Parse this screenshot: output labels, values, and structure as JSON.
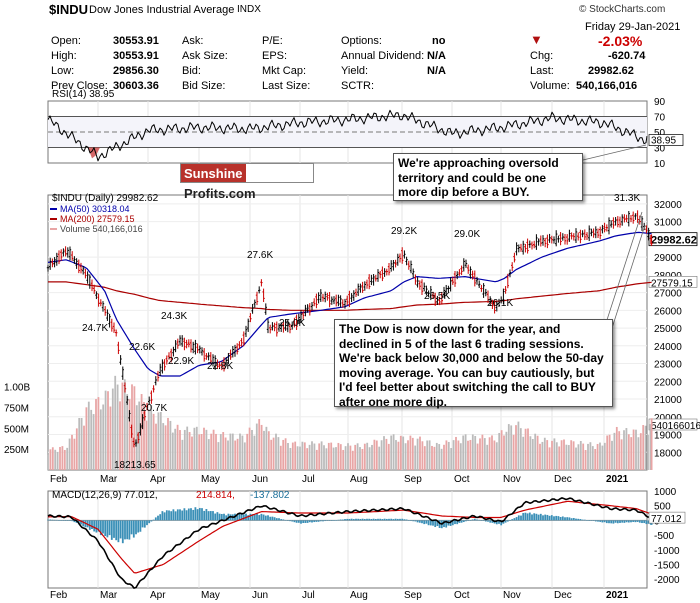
{
  "header": {
    "symbol": "$INDU",
    "name": "Dow Jones Industrial Average",
    "exchange": "INDX",
    "watermark": "© StockCharts.com",
    "date": "Friday  29-Jan-2021",
    "pct_change": "-2.03%",
    "down_arrow": "▼"
  },
  "quote": {
    "open_label": "Open:",
    "open": "30553.91",
    "high_label": "High:",
    "high": "30553.91",
    "low_label": "Low:",
    "low": "29856.30",
    "prev_label": "Prev Close:",
    "prev": "30603.36",
    "ask_label": "Ask:",
    "ask_size_label": "Ask Size:",
    "bid_label": "Bid:",
    "bid_size_label": "Bid Size:",
    "pe_label": "P/E:",
    "eps_label": "EPS:",
    "mktcap_label": "Mkt Cap:",
    "lastsize_label": "Last Size:",
    "options_label": "Options:",
    "options": "no",
    "div_label": "Annual Dividend:",
    "div": "N/A",
    "yield_label": "Yield:",
    "yield": "N/A",
    "sctr_label": "SCTR:",
    "chg_label": "Chg:",
    "chg": "-620.74",
    "last_label": "Last:",
    "last": "29982.62",
    "volume_label": "Volume:",
    "volume": "540,166,016"
  },
  "colors": {
    "up": "#000000",
    "down": "#cc0000",
    "ma50": "#0000aa",
    "ma200": "#aa0000",
    "volume": "#e8a5a5",
    "macd_line": "#000000",
    "macd_signal": "#cc0000",
    "hist": "#3a8fb7",
    "rsi": "#000000"
  },
  "callouts": {
    "rsi_note": "We're approaching oversold territory and could be one more dip before a BUY.",
    "main_note": "The Dow is now down for the year, and declined in 5 of the last 6 trading sessions. We're back below 30,000 and below the 50-day moving average. You can buy cautiously, but I'd feel better about switching the call to BUY after one more dip."
  },
  "logo": {
    "part1": "Sunshine",
    "part2": "Profits.com"
  },
  "chart_data": [
    {
      "type": "line",
      "name": "RSI",
      "title": "RSI(14) 38.95",
      "last_value": "38.95",
      "ylim": [
        10,
        90
      ],
      "y_ticks": [
        "90",
        "70",
        "50",
        "30",
        "10"
      ],
      "x": [
        "Feb",
        "Mar",
        "Apr",
        "May",
        "Jun",
        "Jul",
        "Aug",
        "Sep",
        "Oct",
        "Nov",
        "Dec",
        "2021",
        "Jan-29"
      ],
      "values": [
        66,
        18,
        52,
        56,
        54,
        62,
        66,
        72,
        48,
        56,
        68,
        62,
        38.95
      ]
    },
    {
      "type": "line",
      "name": "Price",
      "title": "$INDU (Daily) 29982.62",
      "legend": [
        {
          "name": "MA(50) 30318.04",
          "color": "#0000aa"
        },
        {
          "name": "MA(200) 27579.15",
          "color": "#aa0000"
        },
        {
          "name": "Volume 540,166,016",
          "color": "#e8a5a5"
        }
      ],
      "ylim": [
        17000,
        32500
      ],
      "y_ticks": [
        "32000",
        "31000",
        "29982.62",
        "29000",
        "28000",
        "27579.15",
        "27000",
        "26000",
        "25000",
        "24000",
        "23000",
        "22000",
        "21000",
        "20000",
        "19000",
        "18000"
      ],
      "volume_ticks": [
        "1.00B",
        "750M",
        "500M",
        "250M",
        "540166016"
      ],
      "x_labels": [
        "Feb",
        "Mar",
        "Apr",
        "May",
        "Jun",
        "Jul",
        "Aug",
        "Sep",
        "Oct",
        "Nov",
        "Dec",
        "2021"
      ],
      "x": [
        "Feb-01",
        "Feb-12",
        "Feb-24",
        "Mar-05",
        "Mar-12",
        "Mar-23",
        "Apr-01",
        "Apr-08",
        "Apr-20",
        "May-01",
        "May-14",
        "May-27",
        "Jun-08",
        "Jun-12",
        "Jun-26",
        "Jul-14",
        "Jul-29",
        "Aug-10",
        "Aug-25",
        "Sep-02",
        "Sep-10",
        "Sep-23",
        "Oct-09",
        "Oct-28",
        "Nov-03",
        "Nov-10",
        "Nov-25",
        "Dec-10",
        "Dec-28",
        "Jan-08",
        "Jan-21",
        "Jan-29"
      ],
      "close": [
        28400,
        29400,
        28000,
        26000,
        24700,
        18214,
        20700,
        22600,
        24300,
        23800,
        22800,
        24300,
        27600,
        25000,
        25100,
        26800,
        26400,
        27400,
        28400,
        29200,
        27600,
        26500,
        28600,
        26100,
        26900,
        29400,
        29900,
        30100,
        30400,
        31000,
        31300,
        29982.62
      ],
      "ma50": [
        28700,
        28850,
        28400,
        27100,
        25500,
        23800,
        22700,
        22300,
        22300,
        22900,
        23100,
        24000,
        25200,
        25600,
        25800,
        26000,
        26200,
        26700,
        27100,
        27600,
        27900,
        27800,
        27900,
        27600,
        27800,
        28300,
        29000,
        29500,
        29900,
        30200,
        30400,
        30318
      ],
      "ma200": [
        27600,
        27600,
        27450,
        27300,
        27100,
        26900,
        26700,
        26550,
        26450,
        26350,
        26250,
        26150,
        26100,
        26050,
        26000,
        26000,
        26000,
        26050,
        26100,
        26200,
        26300,
        26350,
        26450,
        26500,
        26550,
        26650,
        26800,
        26950,
        27100,
        27300,
        27500,
        27579
      ],
      "volume_millions": [
        230,
        260,
        700,
        820,
        1000,
        900,
        700,
        620,
        450,
        460,
        400,
        380,
        560,
        420,
        300,
        300,
        280,
        280,
        380,
        360,
        360,
        280,
        380,
        360,
        460,
        520,
        340,
        320,
        280,
        450,
        430,
        540
      ],
      "annotations": [
        "24.7K",
        "18213.65",
        "20.7K",
        "22.6K",
        "24.3K",
        "22.9K",
        "22.8K",
        "27.6K",
        "25.0K",
        "29.2K",
        "26.5K",
        "29.0K",
        "26.1K",
        "31.3K"
      ]
    },
    {
      "type": "line",
      "name": "MACD",
      "title": "MACD(12,26,9) 77.012, 214.814, -137.802",
      "title_parts": [
        "MACD(12,26,9) 77.012,",
        "214.814,",
        "-137.802"
      ],
      "last_value": "77.012",
      "ylim": [
        -2300,
        1000
      ],
      "y_ticks": [
        "1000",
        "500",
        "0",
        "-500",
        "-1000",
        "-1500",
        "-2000"
      ],
      "x_labels": [
        "Feb",
        "Mar",
        "Apr",
        "May",
        "Jun",
        "Jul",
        "Aug",
        "Sep",
        "Oct",
        "Nov",
        "Dec",
        "2021"
      ],
      "x": [
        "Feb-01",
        "Feb-15",
        "Mar-01",
        "Mar-15",
        "Mar-23",
        "Apr-10",
        "May-01",
        "May-15",
        "Jun-08",
        "Jul-01",
        "Aug-01",
        "Sep-02",
        "Sep-25",
        "Oct-15",
        "Nov-01",
        "Nov-15",
        "Dec-10",
        "Jan-05",
        "Jan-20",
        "Jan-29"
      ],
      "macd": [
        150,
        120,
        -700,
        -2000,
        -2300,
        -1200,
        -300,
        0,
        500,
        150,
        300,
        400,
        -100,
        150,
        -50,
        600,
        750,
        400,
        350,
        77
      ],
      "signal": [
        120,
        130,
        -300,
        -1300,
        -1800,
        -1500,
        -700,
        -200,
        300,
        250,
        250,
        350,
        150,
        100,
        100,
        350,
        650,
        500,
        400,
        215
      ],
      "histogram": [
        30,
        -10,
        -400,
        -700,
        -500,
        300,
        400,
        200,
        200,
        -100,
        50,
        50,
        -250,
        50,
        -150,
        250,
        100,
        -100,
        -50,
        -138
      ]
    }
  ]
}
